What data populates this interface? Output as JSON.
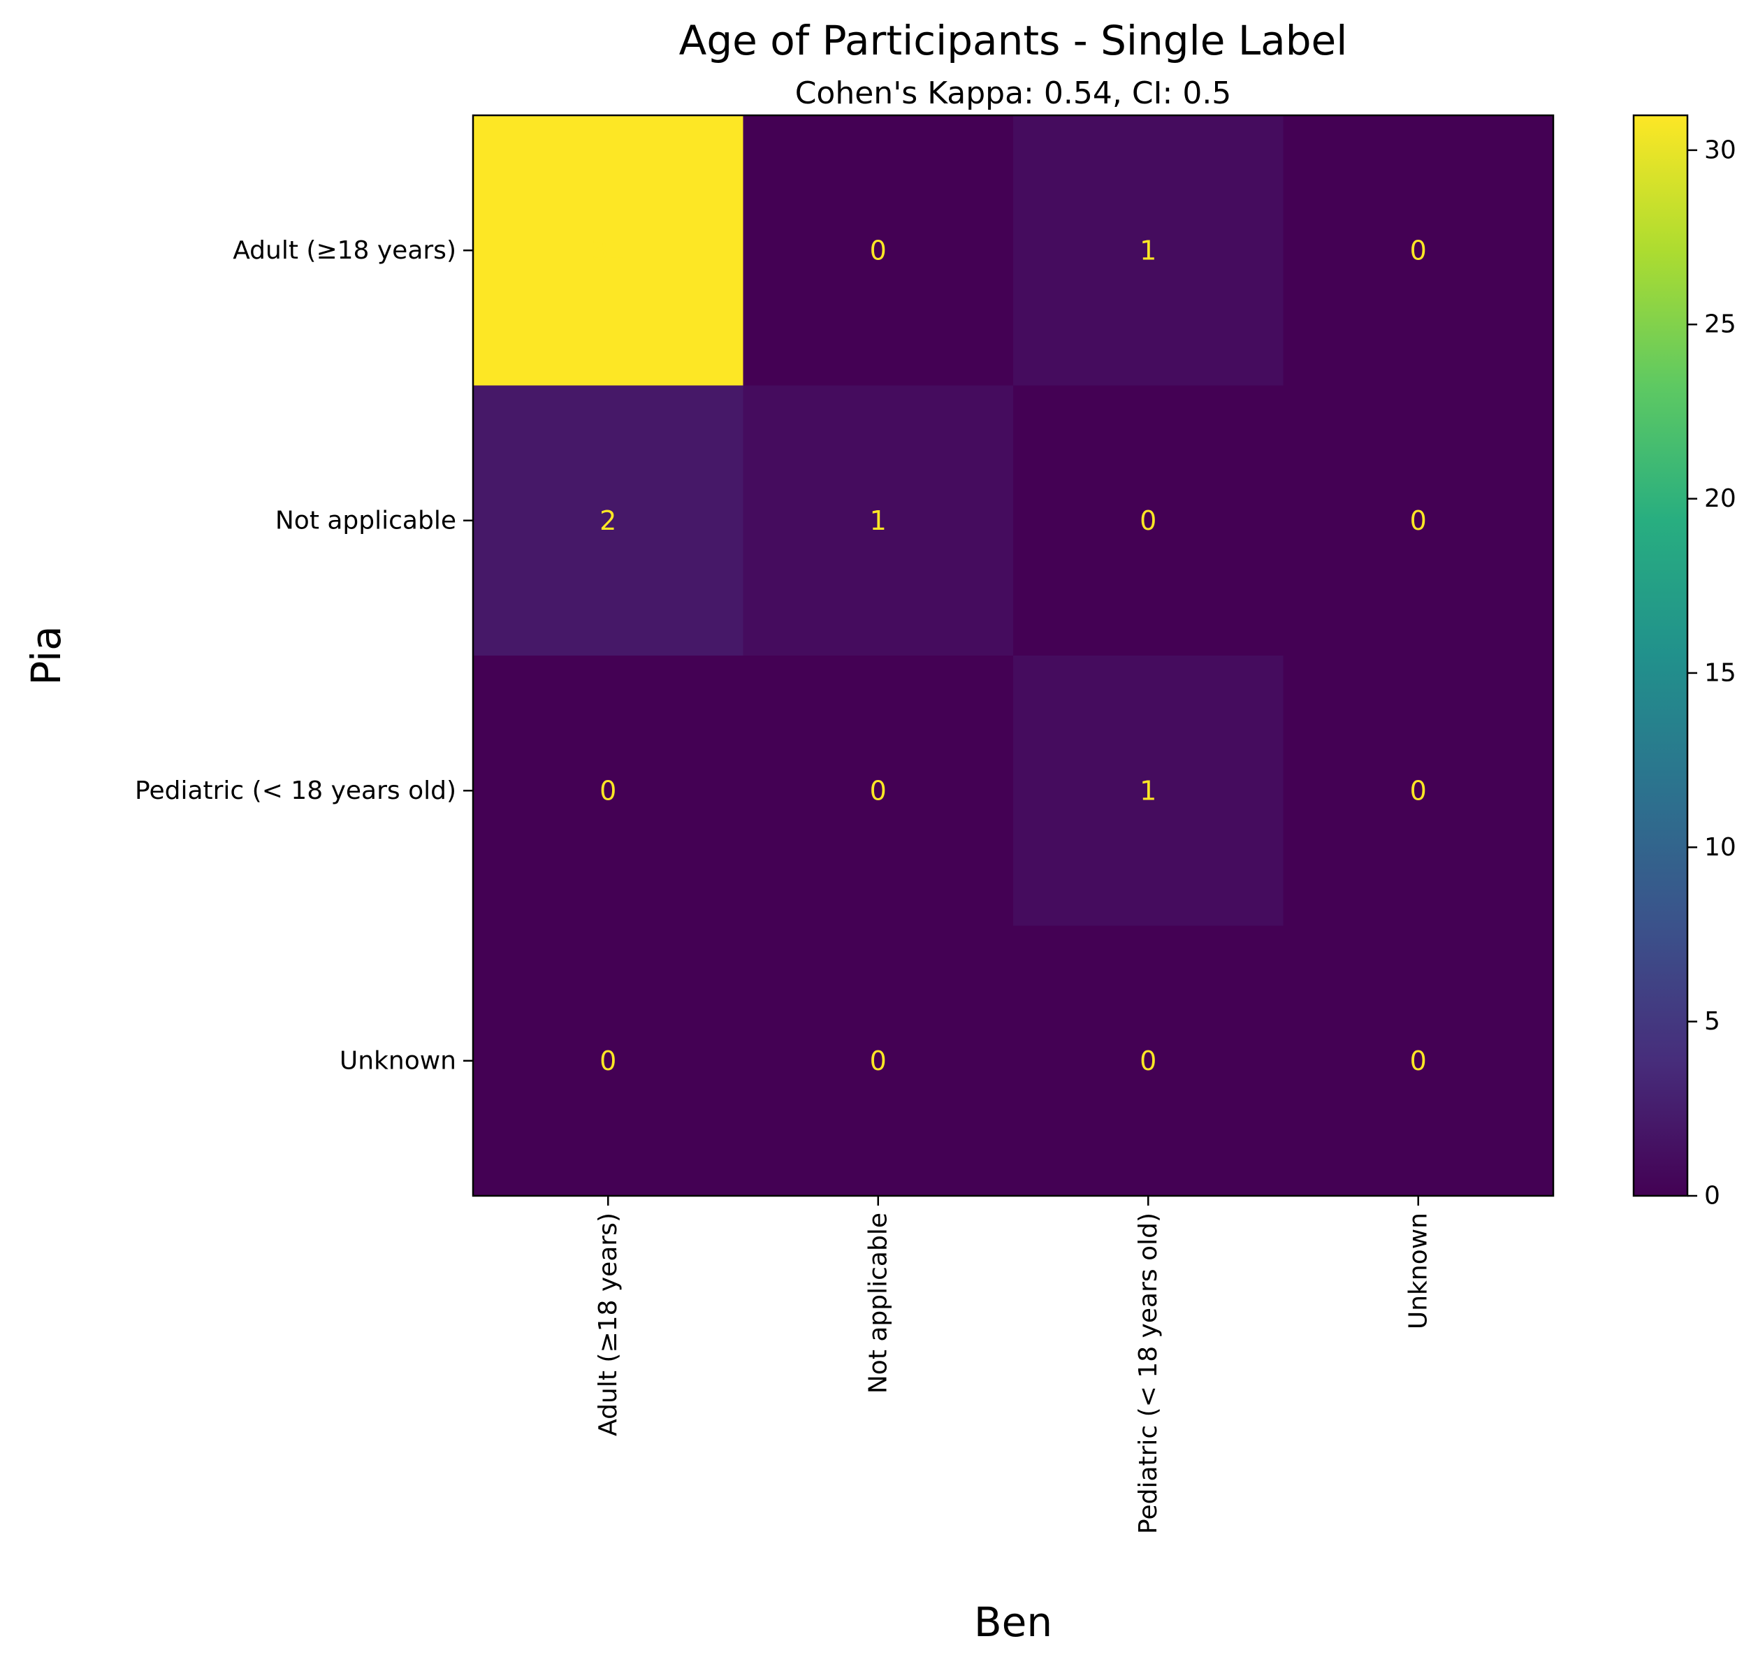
{
  "chart_data": {
    "type": "heatmap",
    "title": "Age of Participants - Single Label",
    "subtitle": "Cohen's Kappa: 0.54, CI: 0.5",
    "xlabel": "Ben",
    "ylabel": "Pia",
    "row_labels": [
      "Adult (≥18 years)",
      "Not applicable",
      "Pediatric (< 18 years old)",
      "Unknown"
    ],
    "col_labels": [
      "Adult (≥18 years)",
      "Not applicable",
      "Pediatric (< 18 years old)",
      "Unknown"
    ],
    "values": [
      [
        31,
        0,
        1,
        0
      ],
      [
        2,
        1,
        0,
        0
      ],
      [
        0,
        0,
        1,
        0
      ],
      [
        0,
        0,
        0,
        0
      ]
    ],
    "colormap": "viridis",
    "color_range": [
      0,
      31
    ],
    "colorbar_ticks": [
      "0",
      "5",
      "10",
      "15",
      "20",
      "25",
      "30"
    ],
    "colorbar_values": [
      0,
      5,
      10,
      15,
      20,
      25,
      30
    ],
    "annotation_color": "#fde725"
  }
}
